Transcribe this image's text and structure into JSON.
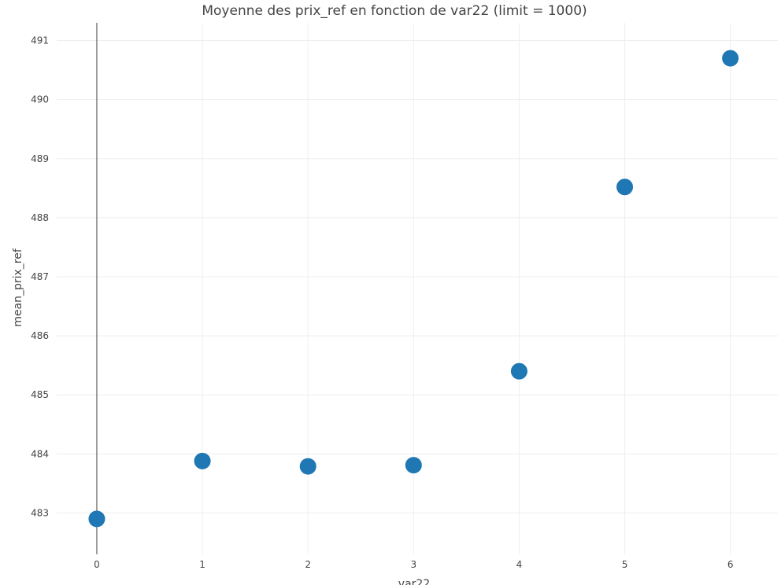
{
  "chart_data": {
    "type": "scatter",
    "title": "Moyenne des prix_ref en fonction de var22 (limit = 1000)",
    "xlabel": "var22",
    "ylabel": "mean_prix_ref",
    "xlim": [
      -0.38,
      6.45
    ],
    "ylim": [
      482.3,
      491.3
    ],
    "x_ticks": [
      0,
      1,
      2,
      3,
      4,
      5,
      6
    ],
    "y_ticks": [
      483,
      484,
      485,
      486,
      487,
      488,
      489,
      490,
      491
    ],
    "grid": true,
    "x": [
      0,
      1,
      2,
      3,
      4,
      5,
      6
    ],
    "y": [
      482.9,
      483.88,
      483.79,
      483.81,
      485.4,
      488.52,
      490.7
    ],
    "marker_color": "#1f77b4"
  }
}
